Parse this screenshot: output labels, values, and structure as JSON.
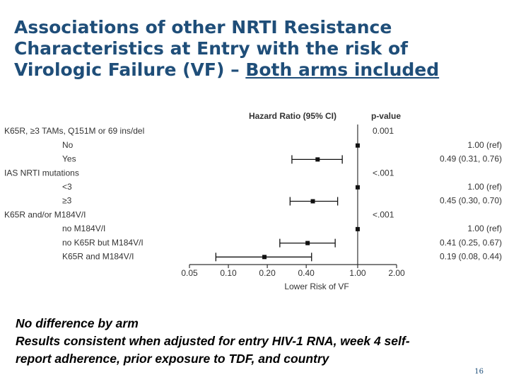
{
  "title": {
    "line1": "Associations of other NRTI Resistance",
    "line2": "Characteristics at Entry with the risk of",
    "line3_prefix": "Virologic Failure (VF) – ",
    "line3_underlined": "Both arms included"
  },
  "chart_data": {
    "type": "forest",
    "column_headers": {
      "estimate": "Hazard Ratio (95% CI)",
      "pvalue": "p-value"
    },
    "xlabel": "Lower Risk of VF",
    "x_scale": "log",
    "xlim": [
      0.05,
      2.0
    ],
    "x_ticks": [
      0.05,
      0.1,
      0.2,
      0.4,
      1.0,
      2.0
    ],
    "x_tick_labels": [
      "0.05",
      "0.10",
      "0.20",
      "0.40",
      "1.00",
      "2.00"
    ],
    "reference_line": 1.0,
    "rows": [
      {
        "label": "K65R, ≥3 TAMs, Q151M or 69 ins/del",
        "level": 0,
        "pvalue": "0.001"
      },
      {
        "label": "No",
        "level": 1,
        "hr": 1.0,
        "text": "1.00 (ref)"
      },
      {
        "label": "Yes",
        "level": 1,
        "hr": 0.49,
        "lo": 0.31,
        "hi": 0.76,
        "text": "0.49 (0.31, 0.76)"
      },
      {
        "label": "IAS NRTI mutations",
        "level": 0,
        "pvalue": "<.001"
      },
      {
        "label": "<3",
        "level": 1,
        "hr": 1.0,
        "text": "1.00 (ref)"
      },
      {
        "label": "≥3",
        "level": 1,
        "hr": 0.45,
        "lo": 0.3,
        "hi": 0.7,
        "text": "0.45 (0.30, 0.70)"
      },
      {
        "label": "K65R and/or M184V/I",
        "level": 0,
        "pvalue": "<.001"
      },
      {
        "label": "no M184V/I",
        "level": 1,
        "hr": 1.0,
        "text": "1.00 (ref)"
      },
      {
        "label": "no K65R but M184V/I",
        "level": 1,
        "hr": 0.41,
        "lo": 0.25,
        "hi": 0.67,
        "text": "0.41 (0.25, 0.67)"
      },
      {
        "label": "K65R and M184V/I",
        "level": 1,
        "hr": 0.19,
        "lo": 0.08,
        "hi": 0.44,
        "text": "0.19 (0.08, 0.44)"
      }
    ]
  },
  "notes": {
    "line1": "No difference by arm",
    "line2": "Results consistent when adjusted for entry HIV-1 RNA, week 4 self-",
    "line3": "report adherence, prior exposure to TDF, and country"
  },
  "page_number": "16",
  "colors": {
    "title": "#1f4e79",
    "chart_text": "#333333",
    "marker": "#111111"
  }
}
